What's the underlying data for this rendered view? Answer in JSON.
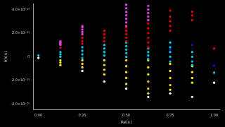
{
  "chart_data": {
    "type": "scatter",
    "x_label": "Re(x)",
    "y_label": "Im(x)",
    "xlim": [
      -0.03,
      1.03
    ],
    "xticks": [
      {
        "value": 0,
        "label": "0.00"
      },
      {
        "value": 0.25,
        "label": "0.25"
      },
      {
        "value": 0.5,
        "label": "0.50"
      },
      {
        "value": 0.75,
        "label": "0.75"
      },
      {
        "value": 1,
        "label": "1.00"
      }
    ],
    "ylim": [
      -4.5e-15,
      4.5e-15
    ],
    "yticks": [
      {
        "value": -4e-15,
        "label": "-4.0×10⁻¹⁵"
      },
      {
        "value": -2e-15,
        "label": "-2.0×10⁻¹⁵"
      },
      0,
      {
        "value": 2e-15,
        "label": "2.0×10⁻¹⁵"
      },
      {
        "value": 4e-15,
        "label": "4.0×10⁻¹⁵"
      }
    ],
    "grid": false,
    "marker": "circle",
    "series": [
      {
        "color": "#e040e0",
        "x": [
          0.125,
          0.125,
          0.125,
          0.125,
          0.25,
          0.25,
          0.25,
          0.25,
          0.25,
          0.5,
          0.5,
          0.5,
          0.5,
          0.5,
          0.5,
          0.5,
          0.625,
          0.625,
          0.625,
          0.625,
          0.625
        ],
        "values": [
          1e-15,
          1.1e-15,
          1.2e-15,
          1.3e-15,
          1.9e-15,
          2.1e-15,
          2.3e-15,
          2.5e-15,
          2.6e-15,
          2.6e-15,
          2.9e-15,
          3.2e-15,
          3.5e-15,
          3.8e-15,
          4.1e-15,
          4.4e-15,
          3.1e-15,
          3.4e-15,
          3.7e-15,
          4e-15,
          4.3e-15
        ]
      },
      {
        "color": "#e00000",
        "x": [
          0.125,
          0.25,
          0.25,
          0.25,
          0.375,
          0.375,
          0.375,
          0.375,
          0.5,
          0.5,
          0.5,
          0.5,
          0.5,
          0.625,
          0.625,
          0.625,
          0.625,
          0.625,
          0.625,
          0.625,
          0.75,
          0.75,
          0.75,
          0.75,
          0.75,
          0.875,
          0.875,
          0.875,
          1.0
        ],
        "values": [
          7.5e-16,
          1.1e-15,
          1.3e-15,
          1.6e-15,
          1.3e-15,
          1.6e-15,
          1.9e-15,
          2.2e-15,
          1.3e-15,
          1.6e-15,
          1.9e-15,
          2.2e-15,
          2.5e-15,
          8e-16,
          1.2e-15,
          1.6e-15,
          2e-15,
          2.4e-15,
          2.8e-15,
          3.1e-15,
          2.2e-15,
          2.6e-15,
          3e-15,
          3.4e-15,
          3.9e-15,
          3.1e-15,
          3.5e-15,
          3.8e-15,
          7e-16
        ]
      },
      {
        "color": "#1010e0",
        "x": [
          0.75,
          0.875,
          1.0
        ],
        "values": [
          6e-16,
          1e-15,
          -7.5e-16
        ]
      },
      {
        "color": "#00c8e0",
        "x": [
          0,
          0.125,
          0.125,
          0.125,
          0.25,
          0.25,
          0.25,
          0.25,
          0.375,
          0.375,
          0.375,
          0.375,
          0.5,
          0.5,
          0.5,
          0.5,
          0.5,
          0.625,
          0.625,
          0.625,
          0.625,
          0.75,
          0.75,
          0.75,
          0.75,
          0.75,
          0.875,
          0.875,
          0.875,
          0.875,
          1.0
        ],
        "values": [
          1e-16,
          4e-16,
          2e-16,
          0.0,
          8e-16,
          5e-16,
          2e-16,
          -1e-16,
          1e-15,
          7e-16,
          4e-16,
          1e-16,
          1.2e-15,
          9e-16,
          6e-16,
          3e-16,
          0.0,
          7e-16,
          4e-16,
          1e-16,
          -2e-16,
          1.2e-15,
          8e-16,
          4e-16,
          0.0,
          -4e-16,
          4e-16,
          0.0,
          -4e-16,
          -7e-16,
          -1.35e-15
        ]
      },
      {
        "color": "#f0e020",
        "x": [
          0.125,
          0.125,
          0.125,
          0.25,
          0.25,
          0.25,
          0.375,
          0.375,
          0.375,
          0.375,
          0.5,
          0.5,
          0.5,
          0.5,
          0.5,
          0.625,
          0.625,
          0.625,
          0.625,
          0.625,
          0.625,
          0.75,
          0.75,
          0.75,
          0.75,
          0.75,
          0.875,
          0.875,
          0.875,
          0.875
        ],
        "values": [
          -3e-16,
          -5e-16,
          -7e-16,
          -3e-16,
          -6e-16,
          -9e-16,
          -3e-16,
          -7e-16,
          -1.1e-15,
          -1.5e-15,
          -3e-16,
          -8e-16,
          -1.3e-15,
          -1.8e-15,
          -2.3e-15,
          -3e-16,
          -9e-16,
          -1.5e-15,
          -2.1e-15,
          -2.7e-15,
          -3.1e-15,
          -6e-16,
          -1.2e-15,
          -1.8e-15,
          -2.4e-15,
          -2.8e-15,
          -8e-16,
          -1.3e-15,
          -1.8e-15,
          -2.2e-15
        ]
      },
      {
        "color": "#ffffff",
        "x": [
          0,
          0.25,
          0.375,
          0.5,
          0.625,
          0.75,
          0.875,
          1.0
        ],
        "values": [
          -1e-16,
          -1.2e-15,
          -2.1e-15,
          -2.7e-15,
          -3.4e-15,
          -3.1e-15,
          -3.4e-15,
          -2.2e-15
        ]
      }
    ]
  }
}
